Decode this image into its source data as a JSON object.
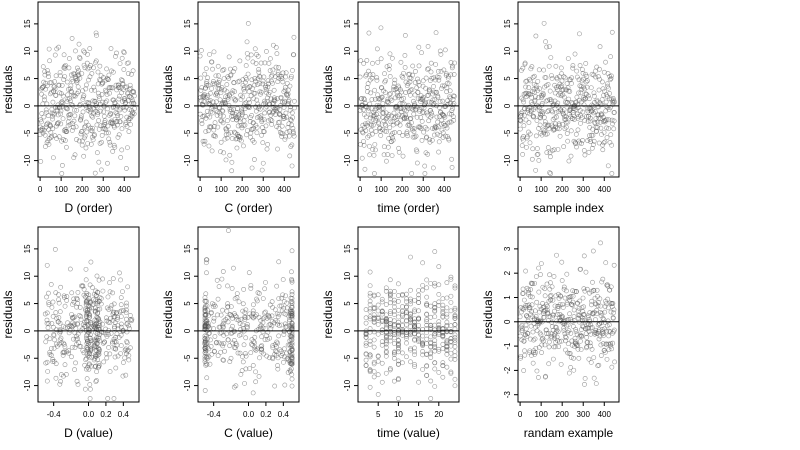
{
  "colors": {
    "point": "#555555",
    "axis": "#000000",
    "refline": "#000000",
    "background": "#ffffff"
  },
  "chart_data": [
    {
      "type": "scatter",
      "xlabel": "D (order)",
      "ylabel": "residuals",
      "xlim": [
        -10,
        470
      ],
      "ylim": [
        -13,
        19
      ],
      "xticks": [
        0,
        100,
        200,
        300,
        400
      ],
      "xtick_labels": [
        "0",
        "100",
        "200",
        "300",
        "400"
      ],
      "yticks": [
        -10,
        -5,
        0,
        5,
        10,
        15
      ],
      "ytick_labels": [
        "-10",
        "-5",
        "0",
        "5",
        "10",
        "15"
      ],
      "hline": 0,
      "x_kind": "index",
      "n": 450,
      "seed": 11,
      "sd": 4.6
    },
    {
      "type": "scatter",
      "xlabel": "C (order)",
      "ylabel": "residuals",
      "xlim": [
        -10,
        470
      ],
      "ylim": [
        -13,
        19
      ],
      "xticks": [
        0,
        100,
        200,
        300,
        400
      ],
      "xtick_labels": [
        "0",
        "100",
        "200",
        "300",
        "400"
      ],
      "yticks": [
        -10,
        -5,
        0,
        5,
        10,
        15
      ],
      "ytick_labels": [
        "-10",
        "-5",
        "0",
        "5",
        "10",
        "15"
      ],
      "hline": 0,
      "x_kind": "index",
      "n": 450,
      "seed": 23,
      "sd": 4.6
    },
    {
      "type": "scatter",
      "xlabel": "time (order)",
      "ylabel": "residuals",
      "xlim": [
        -10,
        470
      ],
      "ylim": [
        -13,
        19
      ],
      "xticks": [
        0,
        100,
        200,
        300,
        400
      ],
      "xtick_labels": [
        "0",
        "100",
        "200",
        "300",
        "400"
      ],
      "yticks": [
        -10,
        -5,
        0,
        5,
        10,
        15
      ],
      "ytick_labels": [
        "-10",
        "-5",
        "0",
        "5",
        "10",
        "15"
      ],
      "hline": 0,
      "x_kind": "index",
      "n": 450,
      "seed": 37,
      "sd": 4.6
    },
    {
      "type": "scatter",
      "xlabel": "sample index",
      "ylabel": "residuals",
      "xlim": [
        -10,
        470
      ],
      "ylim": [
        -13,
        19
      ],
      "xticks": [
        0,
        100,
        200,
        300,
        400
      ],
      "xtick_labels": [
        "0",
        "100",
        "200",
        "300",
        "400"
      ],
      "yticks": [
        -10,
        -5,
        0,
        5,
        10,
        15
      ],
      "ytick_labels": [
        "-10",
        "-5",
        "0",
        "5",
        "10",
        "15"
      ],
      "hline": 0,
      "x_kind": "index",
      "n": 450,
      "seed": 41,
      "sd": 4.6
    },
    {
      "type": "scatter",
      "xlabel": "D (value)",
      "ylabel": "residuals",
      "xlim": [
        -0.58,
        0.58
      ],
      "ylim": [
        -13,
        19
      ],
      "xticks": [
        -0.4,
        0.0,
        0.2,
        0.4
      ],
      "xtick_labels": [
        "-0.4",
        "0.0",
        "0.2",
        "0.4"
      ],
      "yticks": [
        -10,
        -5,
        0,
        5,
        10,
        15
      ],
      "ytick_labels": [
        "-10",
        "-5",
        "0",
        "5",
        "10",
        "15"
      ],
      "hline": 0,
      "x_kind": "continuous",
      "n": 450,
      "seed": 53,
      "sd": 4.6,
      "x_range": [
        -0.5,
        0.5
      ],
      "x_cluster": [
        0.0,
        0.1
      ]
    },
    {
      "type": "scatter",
      "xlabel": "C (value)",
      "ylabel": "residuals",
      "xlim": [
        -0.58,
        0.58
      ],
      "ylim": [
        -13,
        19
      ],
      "xticks": [
        -0.4,
        0.0,
        0.2,
        0.4
      ],
      "xtick_labels": [
        "-0.4",
        "0.0",
        "0.2",
        "0.4"
      ],
      "yticks": [
        -10,
        -5,
        0,
        5,
        10,
        15
      ],
      "ytick_labels": [
        "-10",
        "-5",
        "0",
        "5",
        "10",
        "15"
      ],
      "hline": 0,
      "x_kind": "continuous",
      "n": 450,
      "seed": 67,
      "sd": 4.6,
      "x_range": [
        -0.5,
        0.5
      ],
      "x_cluster": [
        -0.5,
        0.5
      ]
    },
    {
      "type": "scatter",
      "xlabel": "time (value)",
      "ylabel": "residuals",
      "xlim": [
        0,
        25
      ],
      "ylim": [
        -13,
        19
      ],
      "xticks": [
        5,
        10,
        15,
        20
      ],
      "xtick_labels": [
        "5",
        "10",
        "15",
        "20"
      ],
      "yticks": [
        -10,
        -5,
        0,
        5,
        10,
        15
      ],
      "ytick_labels": [
        "-10",
        "-5",
        "0",
        "5",
        "10",
        "15"
      ],
      "hline": 0,
      "x_kind": "discrete",
      "n": 450,
      "seed": 79,
      "sd": 4.6,
      "x_levels": [
        2,
        3,
        4,
        5,
        6,
        7,
        8,
        9,
        10,
        11,
        12,
        13,
        14,
        15,
        16,
        17,
        18,
        19,
        20,
        21,
        22,
        23,
        24
      ]
    },
    {
      "type": "scatter",
      "xlabel": "randam example",
      "ylabel": "residuals",
      "xlim": [
        -10,
        470
      ],
      "ylim": [
        -3.3,
        3.9
      ],
      "xticks": [
        0,
        100,
        200,
        300,
        400
      ],
      "xtick_labels": [
        "0",
        "100",
        "200",
        "300",
        "400"
      ],
      "yticks": [
        -3,
        -2,
        -1,
        0,
        1,
        2,
        3
      ],
      "ytick_labels": [
        "-3",
        "-2",
        "-1",
        "0",
        "1",
        "2",
        "3"
      ],
      "hline": 0,
      "x_kind": "index",
      "n": 450,
      "seed": 97,
      "sd": 1.0
    }
  ]
}
